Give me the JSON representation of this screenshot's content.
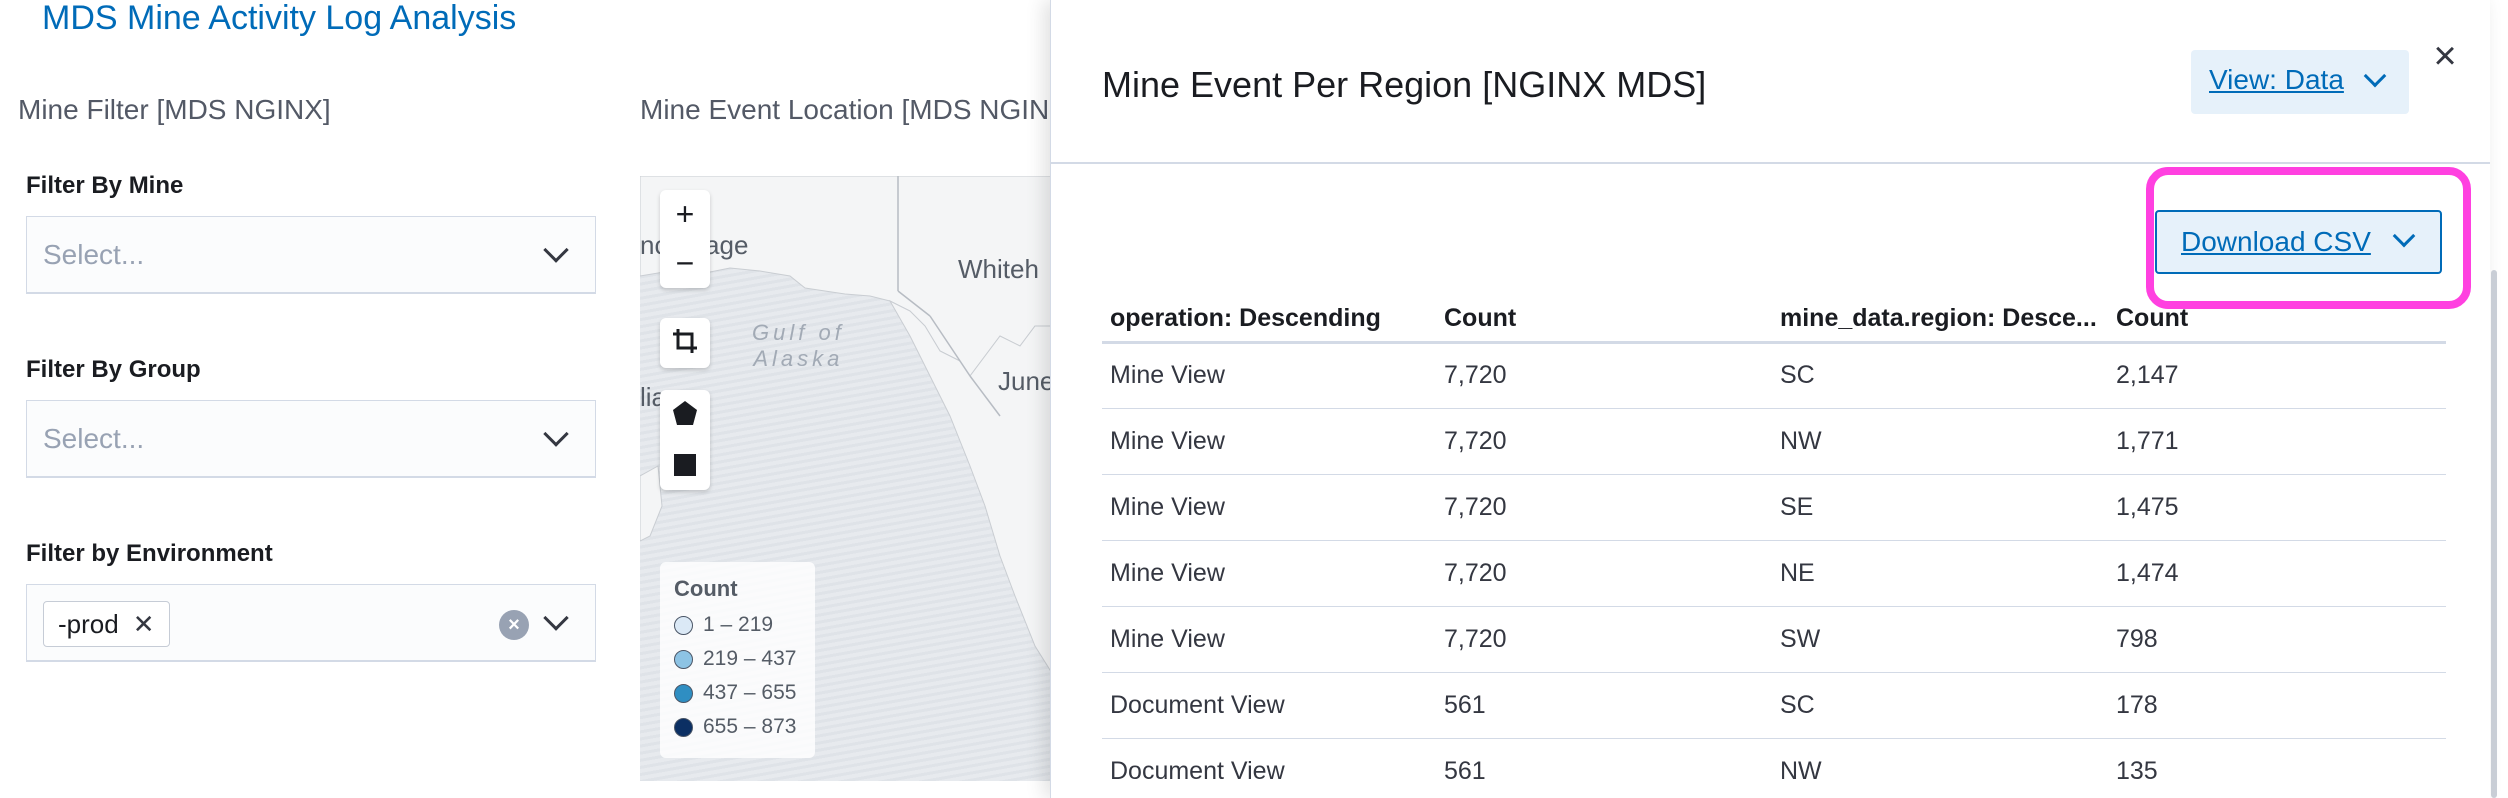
{
  "dashboard": {
    "title": "MDS Mine Activity Log Analysis",
    "filter_panel": {
      "title": "Mine Filter [MDS NGINX]",
      "filters": [
        {
          "label": "Filter By Mine",
          "placeholder": "Select..."
        },
        {
          "label": "Filter By Group",
          "placeholder": "Select..."
        },
        {
          "label": "Filter by Environment",
          "selected": "-prod"
        }
      ]
    },
    "map_panel": {
      "title": "Mine Event Location [MDS NGIN",
      "labels": {
        "anchorage": "nchorage",
        "whitehorse": "Whiteh",
        "juneau": "June",
        "left_edge": "lia",
        "gulf_line1": "Gulf of",
        "gulf_line2": "Alaska"
      },
      "controls": {
        "zoom_in": "+",
        "zoom_out": "−"
      },
      "legend": {
        "title": "Count",
        "items": [
          {
            "range": "1 – 219",
            "color": "#dbe9f6"
          },
          {
            "range": "219 – 437",
            "color": "#8dc3e4"
          },
          {
            "range": "437 – 655",
            "color": "#2f8ec2"
          },
          {
            "range": "655 – 873",
            "color": "#0b2f63"
          }
        ]
      }
    }
  },
  "flyout": {
    "title": "Mine Event Per Region [NGINX MDS]",
    "view_button": "View: Data",
    "download_button": "Download CSV",
    "table": {
      "headers": [
        "operation: Descending",
        "Count",
        "mine_data.region: Desce...",
        "Count"
      ],
      "rows": [
        [
          "Mine View",
          "7,720",
          "SC",
          "2,147"
        ],
        [
          "Mine View",
          "7,720",
          "NW",
          "1,771"
        ],
        [
          "Mine View",
          "7,720",
          "SE",
          "1,475"
        ],
        [
          "Mine View",
          "7,720",
          "NE",
          "1,474"
        ],
        [
          "Mine View",
          "7,720",
          "SW",
          "798"
        ],
        [
          "Document View",
          "561",
          "SC",
          "178"
        ],
        [
          "Document View",
          "561",
          "NW",
          "135"
        ]
      ]
    }
  },
  "colors": {
    "link": "#006bb8",
    "highlight": "#ff40e0",
    "button_bg": "#e6f1fa"
  },
  "icons": {
    "close": "close-icon",
    "chevron": "chevron-down-icon",
    "clear": "clear-icon",
    "crop": "crop-icon",
    "polygon": "polygon-draw-icon",
    "square": "bounds-draw-icon"
  }
}
